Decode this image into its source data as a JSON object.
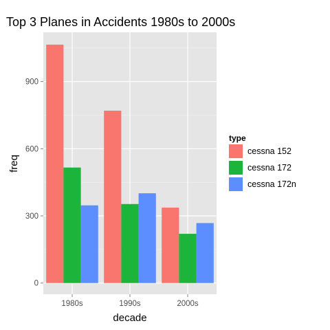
{
  "chart_data": {
    "type": "bar",
    "title": "Top 3 Planes in Accidents 1980s to 2000s",
    "xlabel": "decade",
    "ylabel": "freq",
    "categories": [
      "1980s",
      "1990s",
      "2000s"
    ],
    "yticks": [
      0,
      300,
      600,
      900
    ],
    "ylim": [
      -50,
      1120
    ],
    "grid": true,
    "legend": {
      "title": "type",
      "position": "right"
    },
    "series": [
      {
        "name": "cessna  152",
        "color": "#F8766D",
        "values": [
          1065,
          770,
          337
        ]
      },
      {
        "name": "cessna  172",
        "color": "#1DB43B",
        "values": [
          516,
          353,
          220
        ]
      },
      {
        "name": "cessna  172n",
        "color": "#5C8EFF",
        "values": [
          347,
          401,
          268
        ]
      }
    ]
  },
  "colors": {
    "panel_background": "#E5E5E5",
    "grid_line": "#FFFFFF"
  }
}
